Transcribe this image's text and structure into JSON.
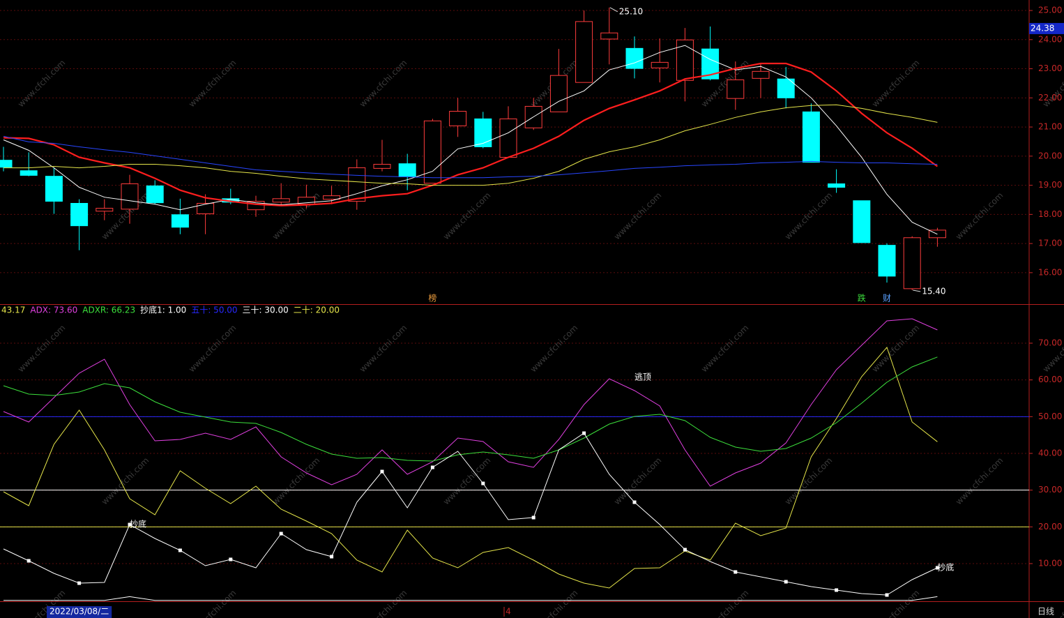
{
  "chart_data": [
    {
      "type": "candlestick",
      "open": [
        19.86,
        19.5,
        19.31,
        18.38,
        18.11,
        18.18,
        18.98,
        17.99,
        18.02,
        18.54,
        18.16,
        18.42,
        18.35,
        18.52,
        18.45,
        19.58,
        19.74,
        19.07,
        21.04,
        21.28,
        19.96,
        20.97,
        21.52,
        22.53,
        24.02,
        23.7,
        23.03,
        22.6,
        23.68,
        21.98,
        22.67,
        22.65,
        21.52,
        19.05,
        18.47,
        16.94,
        15.45,
        17.2
      ],
      "high": [
        20.32,
        20.13,
        19.6,
        18.52,
        18.52,
        19.36,
        19.17,
        18.54,
        18.69,
        18.88,
        18.64,
        19.07,
        19.02,
        18.98,
        19.89,
        20.56,
        20.08,
        21.28,
        22.0,
        21.52,
        21.71,
        22.0,
        23.68,
        25.0,
        25.1,
        24.11,
        24.04,
        24.4,
        24.45,
        23.25,
        23.2,
        23.06,
        21.81,
        19.55,
        18.47,
        17.01,
        17.25,
        17.54
      ],
      "low": [
        19.48,
        19.31,
        18.02,
        16.77,
        17.8,
        17.68,
        18.35,
        17.32,
        17.32,
        18.35,
        17.92,
        18.28,
        18.21,
        18.35,
        18.16,
        19.48,
        18.83,
        19.07,
        20.66,
        20.27,
        19.96,
        20.9,
        21.52,
        22.53,
        23.15,
        22.67,
        22.53,
        21.88,
        22.6,
        21.59,
        22.0,
        21.64,
        19.79,
        18.74,
        17.03,
        15.66,
        15.4,
        16.89
      ],
      "close": [
        19.62,
        19.34,
        18.45,
        17.61,
        18.21,
        19.05,
        18.4,
        17.56,
        18.38,
        18.42,
        18.45,
        18.54,
        18.59,
        18.64,
        19.6,
        19.72,
        19.29,
        21.21,
        21.54,
        20.32,
        21.28,
        21.71,
        22.77,
        24.62,
        24.23,
        23.01,
        23.22,
        23.99,
        22.65,
        22.62,
        22.91,
        22.0,
        19.79,
        18.93,
        17.03,
        15.88,
        17.2,
        17.46
      ],
      "up_color": "#ff3c3c",
      "down_color": "#00ffff",
      "series": [
        {
          "color": "#ffffff",
          "line_width": 1,
          "values": [
            20.56,
            20.2,
            19.6,
            18.93,
            18.59,
            18.47,
            18.35,
            18.16,
            18.35,
            18.52,
            18.4,
            18.33,
            18.4,
            18.47,
            18.71,
            18.98,
            19.19,
            19.48,
            20.25,
            20.44,
            20.8,
            21.35,
            21.88,
            22.24,
            22.96,
            23.2,
            23.56,
            23.8,
            23.32,
            22.96,
            23.08,
            22.72,
            22.0,
            21.04,
            19.96,
            18.69,
            17.73,
            17.32
          ]
        },
        {
          "color": "#ff1e1e",
          "line_width": 2.2,
          "values": [
            20.63,
            20.61,
            20.39,
            19.96,
            19.77,
            19.6,
            19.24,
            18.83,
            18.57,
            18.45,
            18.35,
            18.3,
            18.33,
            18.38,
            18.54,
            18.64,
            18.71,
            19.0,
            19.36,
            19.6,
            19.96,
            20.27,
            20.68,
            21.23,
            21.64,
            21.93,
            22.24,
            22.65,
            22.79,
            23.01,
            23.18,
            23.18,
            22.89,
            22.24,
            21.47,
            20.8,
            20.27,
            19.65
          ]
        },
        {
          "color": "#e6e64a",
          "line_width": 1,
          "values": [
            19.6,
            19.6,
            19.65,
            19.6,
            19.65,
            19.72,
            19.72,
            19.67,
            19.6,
            19.48,
            19.41,
            19.31,
            19.22,
            19.17,
            19.12,
            19.07,
            19.05,
            19.0,
            19.0,
            19.0,
            19.07,
            19.24,
            19.48,
            19.89,
            20.15,
            20.32,
            20.56,
            20.87,
            21.09,
            21.33,
            21.52,
            21.66,
            21.74,
            21.76,
            21.64,
            21.47,
            21.33,
            21.16
          ]
        },
        {
          "color": "#2846ff",
          "line_width": 1,
          "values": [
            20.68,
            20.49,
            20.44,
            20.32,
            20.22,
            20.13,
            20.01,
            19.89,
            19.77,
            19.65,
            19.53,
            19.48,
            19.43,
            19.38,
            19.34,
            19.31,
            19.29,
            19.26,
            19.26,
            19.26,
            19.29,
            19.31,
            19.36,
            19.43,
            19.5,
            19.58,
            19.62,
            19.67,
            19.7,
            19.72,
            19.77,
            19.79,
            19.82,
            19.79,
            19.77,
            19.77,
            19.74,
            19.72
          ]
        }
      ],
      "ylim": [
        14.92,
        25.36
      ],
      "yticks": [
        {
          "value": 16,
          "label": "16.00"
        },
        {
          "value": 17,
          "label": "17.00"
        },
        {
          "value": 18,
          "label": "18.00"
        },
        {
          "value": 19,
          "label": "19.00"
        },
        {
          "value": 20,
          "label": "20.00"
        },
        {
          "value": 21,
          "label": "21.00"
        },
        {
          "value": 22,
          "label": "22.00"
        },
        {
          "value": 23,
          "label": "23.00"
        },
        {
          "value": 24,
          "label": "24.00"
        },
        {
          "value": 25,
          "label": "25.00"
        }
      ],
      "grid": true,
      "cursor_label": {
        "value": 24.38,
        "label": "24.38"
      },
      "annotations": [
        {
          "text": "25.10",
          "value": 25.1,
          "index": 24,
          "at": "high"
        },
        {
          "text": "15.40",
          "value": 15.4,
          "index": 36,
          "at": "low"
        }
      ],
      "markers": [
        {
          "text": "榜",
          "index": 17,
          "color": "#e89a3c"
        },
        {
          "text": "跌",
          "index": 34,
          "color": "#3cdc3c"
        },
        {
          "text": "财",
          "index": 35,
          "color": "#5aa0ff"
        }
      ]
    },
    {
      "type": "line",
      "categories": [
        null,
        null,
        null,
        "2022/03/08/二",
        null,
        null,
        null,
        null,
        null,
        null,
        null,
        null,
        null,
        null,
        null,
        null,
        null,
        null,
        null,
        null,
        "4",
        null,
        null,
        null,
        null,
        null,
        null,
        null,
        null,
        null,
        null,
        null,
        null,
        null,
        null,
        null,
        null,
        null
      ],
      "series": [
        {
          "name": "43.17",
          "color": "#e6e64a",
          "values": [
            29.56,
            25.76,
            42.47,
            51.77,
            40.95,
            27.66,
            23.29,
            35.25,
            30.51,
            26.33,
            31.07,
            24.81,
            21.58,
            18.16,
            10.95,
            7.72,
            19.11,
            11.52,
            8.86,
            13.04,
            14.37,
            10.95,
            7.15,
            4.68,
            3.35,
            8.67,
            8.86,
            13.42,
            10.95,
            21.01,
            17.59,
            19.68,
            39.05,
            49.49,
            60.88,
            68.86,
            48.54,
            43.17
          ]
        },
        {
          "name": "ADX: 73.60",
          "color": "#e040e0",
          "values": [
            51.39,
            48.54,
            55.19,
            61.83,
            65.63,
            53.29,
            43.42,
            43.8,
            45.5,
            43.8,
            47.21,
            39.05,
            34.68,
            31.45,
            34.3,
            40.95,
            34.3,
            37.72,
            44.18,
            43.23,
            37.72,
            36.2,
            43.8,
            53.29,
            60.31,
            57.09,
            52.91,
            40.95,
            31.07,
            34.68,
            37.34,
            42.85,
            53.29,
            62.78,
            69.43,
            76.07,
            76.64,
            73.6
          ]
        },
        {
          "name": "ADXR: 66.23",
          "color": "#3ce03c",
          "values": [
            58.41,
            56.14,
            55.76,
            56.71,
            58.98,
            57.85,
            54.05,
            51.2,
            49.87,
            48.54,
            48.16,
            45.69,
            42.47,
            39.81,
            38.67,
            38.86,
            38.1,
            37.91,
            39.62,
            40.38,
            39.62,
            38.67,
            40.95,
            44.18,
            47.97,
            50.06,
            50.63,
            48.92,
            44.37,
            41.71,
            40.57,
            41.33,
            44.18,
            48.35,
            53.67,
            59.36,
            63.54,
            66.23
          ]
        },
        {
          "color": "#ffffff",
          "dots": true,
          "values": [
            13.99,
            10.76,
            7.34,
            4.68,
            4.87,
            20.63,
            16.84,
            13.61,
            9.43,
            11.14,
            8.86,
            18.16,
            13.8,
            11.9,
            26.71,
            35.06,
            25.19,
            36.2,
            40.57,
            31.83,
            21.96,
            22.53,
            40.95,
            45.5,
            34.3,
            26.71,
            20.63,
            13.8,
            10.57,
            7.72,
            6.39,
            5.06,
            3.73,
            2.79,
            1.84,
            1.46,
            5.63,
            8.86
          ]
        },
        {
          "name": "抄底1: 1.00",
          "color": "#ffffff",
          "values": [
            0,
            0,
            0,
            0,
            0,
            1,
            0,
            0,
            0,
            0,
            0,
            0,
            0,
            0,
            0,
            0,
            0,
            0,
            0,
            0,
            0,
            0,
            0,
            0,
            0,
            0,
            0,
            0,
            0,
            0,
            0,
            0,
            0,
            0,
            0,
            0,
            0,
            1
          ]
        }
      ],
      "reference_lines": [
        {
          "value": 50,
          "label": "五十: 50.00",
          "color": "#2828ff"
        },
        {
          "value": 30,
          "label": "三十: 30.00",
          "color": "#ffffff"
        },
        {
          "value": 20,
          "label": "二十: 20.00",
          "color": "#e6e64a"
        }
      ],
      "annotations": [
        {
          "text": "逃顶",
          "index": 25,
          "series": 1
        },
        {
          "text": "抄底",
          "index": 5,
          "series": 3
        },
        {
          "text": "抄底",
          "index": 37,
          "series": 3
        }
      ],
      "ylim": [
        -0.25,
        80.44
      ],
      "yticks": [
        {
          "value": 10,
          "label": "10.00"
        },
        {
          "value": 20,
          "label": "20.00"
        },
        {
          "value": 30,
          "label": "30.00"
        },
        {
          "value": 40,
          "label": "40.00"
        },
        {
          "value": 50,
          "label": "50.00"
        },
        {
          "value": 60,
          "label": "60.00"
        },
        {
          "value": 70,
          "label": "70.00"
        }
      ],
      "grid": true
    }
  ],
  "period": "日线",
  "watermark": "www.cfchi.com"
}
